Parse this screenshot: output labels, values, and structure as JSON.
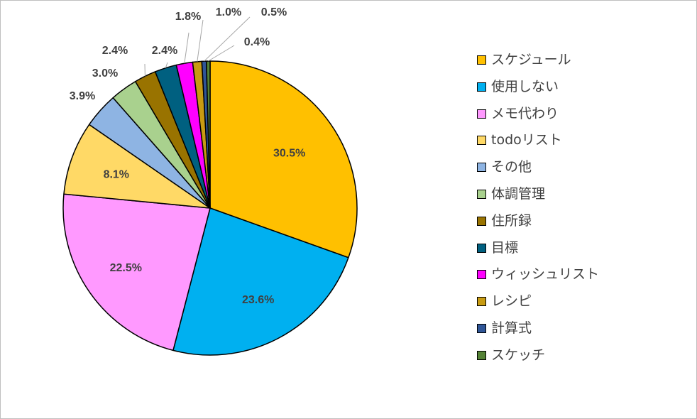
{
  "chart_data": {
    "type": "pie",
    "title": "",
    "start_angle_deg": 0,
    "direction": "clockwise",
    "slices": [
      {
        "label": "スケジュール",
        "value": 30.5,
        "display": "30.5%",
        "color": "#FFC000"
      },
      {
        "label": "使用しない",
        "value": 23.6,
        "display": "23.6%",
        "color": "#00B0F0"
      },
      {
        "label": "メモ代わり",
        "value": 22.5,
        "display": "22.5%",
        "color": "#FF99FF"
      },
      {
        "label": "todoリスト",
        "value": 8.1,
        "display": "8.1%",
        "color": "#FFD966"
      },
      {
        "label": "その他",
        "value": 3.9,
        "display": "3.9%",
        "color": "#8EB4E3"
      },
      {
        "label": "体調管理",
        "value": 3.0,
        "display": "3.0%",
        "color": "#A9D18E"
      },
      {
        "label": "住所録",
        "value": 2.4,
        "display": "2.4%",
        "color": "#997300"
      },
      {
        "label": "目標",
        "value": 2.4,
        "display": "2.4%",
        "color": "#006080"
      },
      {
        "label": "ウィッシュリスト",
        "value": 1.8,
        "display": "1.8%",
        "color": "#FF00FF"
      },
      {
        "label": "レシピ",
        "value": 1.0,
        "display": "1.0%",
        "color": "#C89B12"
      },
      {
        "label": "計算式",
        "value": 0.5,
        "display": "0.5%",
        "color": "#2F5597"
      },
      {
        "label": "スケッチ",
        "value": 0.4,
        "display": "0.4%",
        "color": "#548235"
      }
    ],
    "legend_position": "right"
  }
}
